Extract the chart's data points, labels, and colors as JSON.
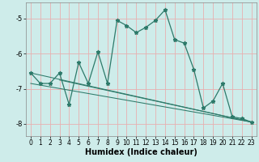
{
  "xlabel": "Humidex (Indice chaleur)",
  "bg_color": "#ceecea",
  "grid_color": "#e8b0b0",
  "line_color": "#2d7a6a",
  "xlim": [
    -0.5,
    23.5
  ],
  "ylim": [
    -8.35,
    -4.55
  ],
  "yticks": [
    -8,
    -7,
    -6,
    -5
  ],
  "xticks": [
    0,
    1,
    2,
    3,
    4,
    5,
    6,
    7,
    8,
    9,
    10,
    11,
    12,
    13,
    14,
    15,
    16,
    17,
    18,
    19,
    20,
    21,
    22,
    23
  ],
  "series1_x": [
    0,
    1,
    2,
    3,
    4,
    5,
    6,
    7,
    8,
    9,
    10,
    11,
    12,
    13,
    14,
    15,
    16,
    17,
    18,
    19,
    20,
    21,
    22,
    23
  ],
  "series1_y": [
    -6.55,
    -6.85,
    -6.85,
    -6.55,
    -7.45,
    -6.25,
    -6.85,
    -5.95,
    -6.85,
    -5.05,
    -5.2,
    -5.4,
    -5.25,
    -5.05,
    -4.75,
    -5.6,
    -5.7,
    -6.45,
    -7.55,
    -7.35,
    -6.85,
    -7.8,
    -7.85,
    -7.95
  ],
  "trend1_x": [
    0,
    23
  ],
  "trend1_y": [
    -6.55,
    -7.95
  ],
  "trend2_x": [
    0,
    23
  ],
  "trend2_y": [
    -6.85,
    -7.95
  ],
  "trend3_x": [
    3,
    23
  ],
  "trend3_y": [
    -6.75,
    -7.95
  ],
  "xlabel_fontsize": 7,
  "tick_fontsize": 5.5
}
